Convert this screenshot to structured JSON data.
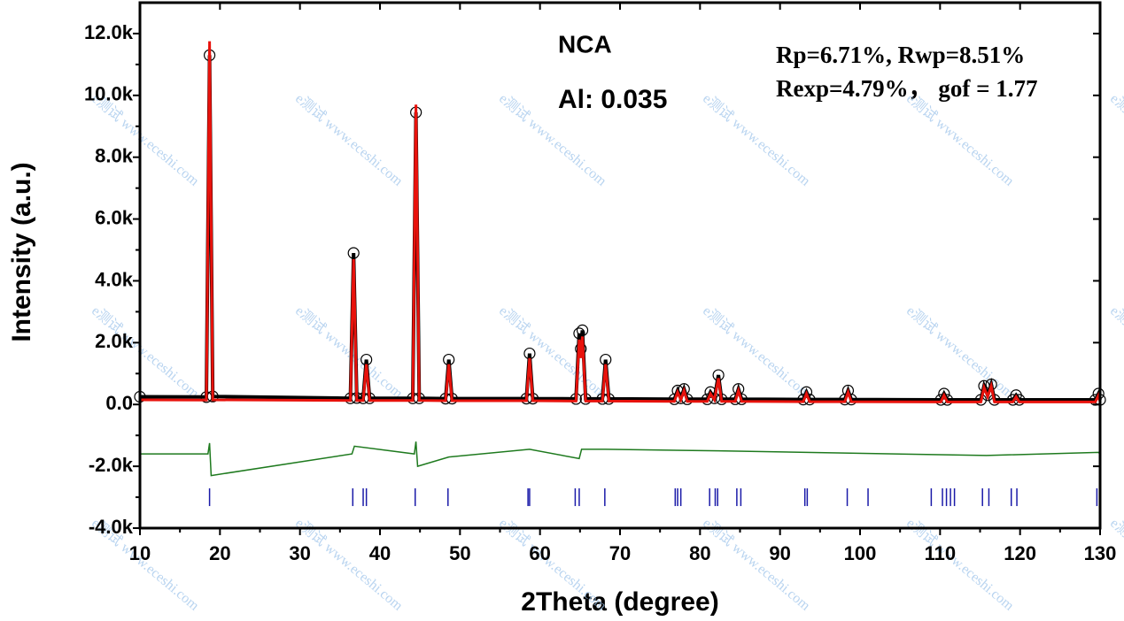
{
  "chart_data": {
    "type": "rietveld",
    "xlabel": "2Theta (degree)",
    "ylabel": "Intensity (a.u.)",
    "annotations": [
      "NCA",
      "Al: 0.035",
      "Rp=6.71%, Rwp=8.51%",
      "Rexp=4.79%， gof = 1.77"
    ],
    "watermark": "e测试 www.eceshi.com",
    "xlim": [
      10,
      130
    ],
    "xticks": [
      10,
      20,
      30,
      40,
      50,
      60,
      70,
      80,
      90,
      100,
      110,
      120,
      130
    ],
    "ylim": [
      -4000,
      13000
    ],
    "yticks": [
      {
        "value": -4000,
        "label": "-4.0k"
      },
      {
        "value": -2000,
        "label": "-2.0k"
      },
      {
        "value": 0,
        "label": "0.0"
      },
      {
        "value": 2000,
        "label": "2.0k"
      },
      {
        "value": 4000,
        "label": "4.0k"
      },
      {
        "value": 6000,
        "label": "6.0k"
      },
      {
        "value": 8000,
        "label": "8.0k"
      },
      {
        "value": 10000,
        "label": "10.0k"
      },
      {
        "value": 12000,
        "label": "12.0k"
      }
    ],
    "series": [
      {
        "style": "circles",
        "color": "#000000",
        "x": [
          10,
          18.3,
          18.7,
          19.1,
          36.3,
          36.7,
          37.1,
          37.9,
          38.3,
          38.7,
          44.1,
          44.5,
          44.9,
          48.2,
          48.6,
          49.0,
          58.3,
          58.7,
          59.1,
          64.5,
          64.9,
          65.1,
          65.3,
          65.7,
          67.8,
          68.2,
          68.6,
          76.8,
          77.2,
          77.6,
          78.0,
          78.4,
          80.9,
          81.3,
          81.8,
          82.3,
          82.7,
          84.4,
          84.8,
          85.2,
          92.9,
          93.3,
          93.7,
          98.1,
          98.5,
          98.9,
          110.1,
          110.5,
          110.9,
          115.1,
          115.5,
          115.95,
          116.4,
          116.8,
          119.1,
          119.5,
          119.9,
          129.4,
          129.8,
          130
        ],
        "values": [
          250,
          240,
          11300,
          260,
          200,
          4900,
          210,
          200,
          1450,
          200,
          200,
          9450,
          200,
          190,
          1450,
          190,
          190,
          1650,
          190,
          180,
          2300,
          1800,
          2400,
          180,
          180,
          1450,
          180,
          170,
          450,
          200,
          500,
          170,
          170,
          400,
          200,
          950,
          170,
          170,
          500,
          170,
          160,
          400,
          160,
          160,
          450,
          160,
          150,
          350,
          150,
          150,
          600,
          300,
          650,
          150,
          150,
          300,
          150,
          150,
          350,
          150
        ]
      },
      {
        "style": "line",
        "color": "#e8120c",
        "x": [
          10,
          18.3,
          18.7,
          19.1,
          36.3,
          36.7,
          37.1,
          37.9,
          38.3,
          38.7,
          44.1,
          44.5,
          44.9,
          48.2,
          48.6,
          49.0,
          58.3,
          58.7,
          59.1,
          64.5,
          64.9,
          65.1,
          65.3,
          65.7,
          67.8,
          68.2,
          68.6,
          76.8,
          77.2,
          77.6,
          78.0,
          78.4,
          80.9,
          81.3,
          81.8,
          82.3,
          82.7,
          84.4,
          84.8,
          85.2,
          92.9,
          93.3,
          93.7,
          98.1,
          98.5,
          98.9,
          110.1,
          110.5,
          110.9,
          115.1,
          115.5,
          115.95,
          116.4,
          116.8,
          119.1,
          119.5,
          119.9,
          129.4,
          129.8,
          130
        ],
        "values": [
          150,
          140,
          11750,
          150,
          130,
          4700,
          130,
          130,
          1300,
          130,
          130,
          9700,
          130,
          120,
          1300,
          120,
          120,
          1500,
          120,
          110,
          2100,
          1500,
          2200,
          110,
          110,
          1300,
          110,
          100,
          400,
          150,
          450,
          100,
          100,
          350,
          150,
          850,
          100,
          100,
          450,
          100,
          90,
          350,
          90,
          90,
          400,
          90,
          80,
          300,
          80,
          80,
          550,
          250,
          600,
          80,
          80,
          250,
          80,
          80,
          300,
          80
        ]
      },
      {
        "style": "thin",
        "color": "#1e7a1e",
        "x": [
          10,
          18.5,
          18.7,
          18.9,
          36.5,
          36.8,
          44.3,
          44.5,
          44.7,
          48.6,
          58.7,
          64.9,
          65.2,
          68.2,
          82.3,
          115.8,
          129.8,
          130
        ],
        "values": [
          -1600,
          -1600,
          -1250,
          -2300,
          -1600,
          -1350,
          -1600,
          -1200,
          -2000,
          -1700,
          -1450,
          -1750,
          -1450,
          -1450,
          -1500,
          -1650,
          -1550,
          -1600
        ]
      }
    ],
    "bragg": {
      "color": "#1a1aa8",
      "level": -3000,
      "positions": [
        18.7,
        36.6,
        37.9,
        38.3,
        44.4,
        48.5,
        58.5,
        58.7,
        64.4,
        64.9,
        68.1,
        76.9,
        77.2,
        77.6,
        81.2,
        81.9,
        82.2,
        84.6,
        85.1,
        93.1,
        93.4,
        98.4,
        101.0,
        108.9,
        110.3,
        110.8,
        111.3,
        111.8,
        115.3,
        116.1,
        118.9,
        119.6,
        129.6
      ]
    }
  }
}
